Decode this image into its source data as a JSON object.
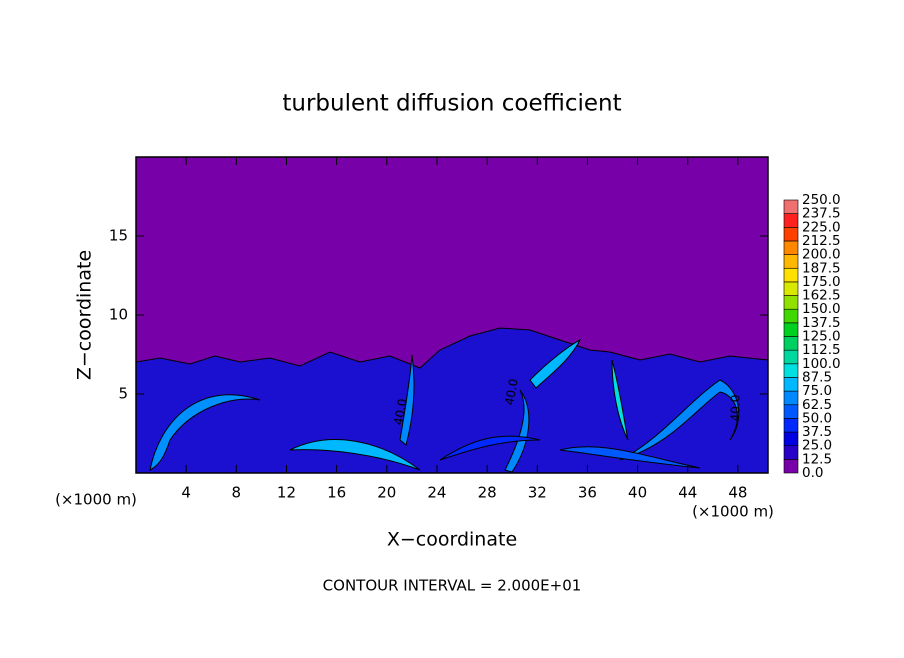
{
  "chart_data": {
    "type": "contour",
    "title": "turbulent diffusion coefficient",
    "x_label": "X−coordinate",
    "y_label": "Z−coordinate",
    "x_unit": "(×1000 m)",
    "y_unit": "(×1000 m)",
    "xlim": [
      0,
      50.4
    ],
    "ylim": [
      0,
      20
    ],
    "xticks": [
      4,
      8,
      12,
      16,
      20,
      24,
      28,
      32,
      36,
      40,
      44,
      48
    ],
    "yticks": [
      5,
      10,
      15
    ],
    "levels": [
      {
        "value": 0,
        "label": "0.0"
      },
      12.5,
      {
        "value": 25,
        "label": "25.0"
      },
      37.5,
      {
        "value": 50,
        "label": "50.0"
      },
      62.5,
      {
        "value": 75,
        "label": "75.0"
      },
      87.5,
      {
        "value": 100,
        "label": "100.0"
      },
      112.5,
      {
        "value": 125,
        "label": "125.0"
      },
      137.5,
      {
        "value": 150,
        "label": "150.0"
      },
      162.5,
      {
        "value": 175,
        "label": "175.0"
      },
      187.5,
      {
        "value": 200,
        "label": "200.0"
      },
      212.5,
      {
        "value": 225,
        "label": "225.0"
      },
      237.5,
      {
        "value": 250,
        "label": "250.0"
      }
    ],
    "colors": [
      "#7800a8",
      "#2800c8",
      "#0000e0",
      "#0028ff",
      "#0058ff",
      "#0088ff",
      "#00b8ff",
      "#00e0e0",
      "#00d8a0",
      "#00d060",
      "#00d020",
      "#40d800",
      "#90e000",
      "#d8e800",
      "#ffe000",
      "#ffb800",
      "#ff8800",
      "#ff4000",
      "#ff2020",
      "#f07070"
    ],
    "annotations": [
      "40.0",
      "40.0",
      "40.0"
    ],
    "contour_interval": "CONTOUR INTERVAL = 2.000E+01"
  }
}
